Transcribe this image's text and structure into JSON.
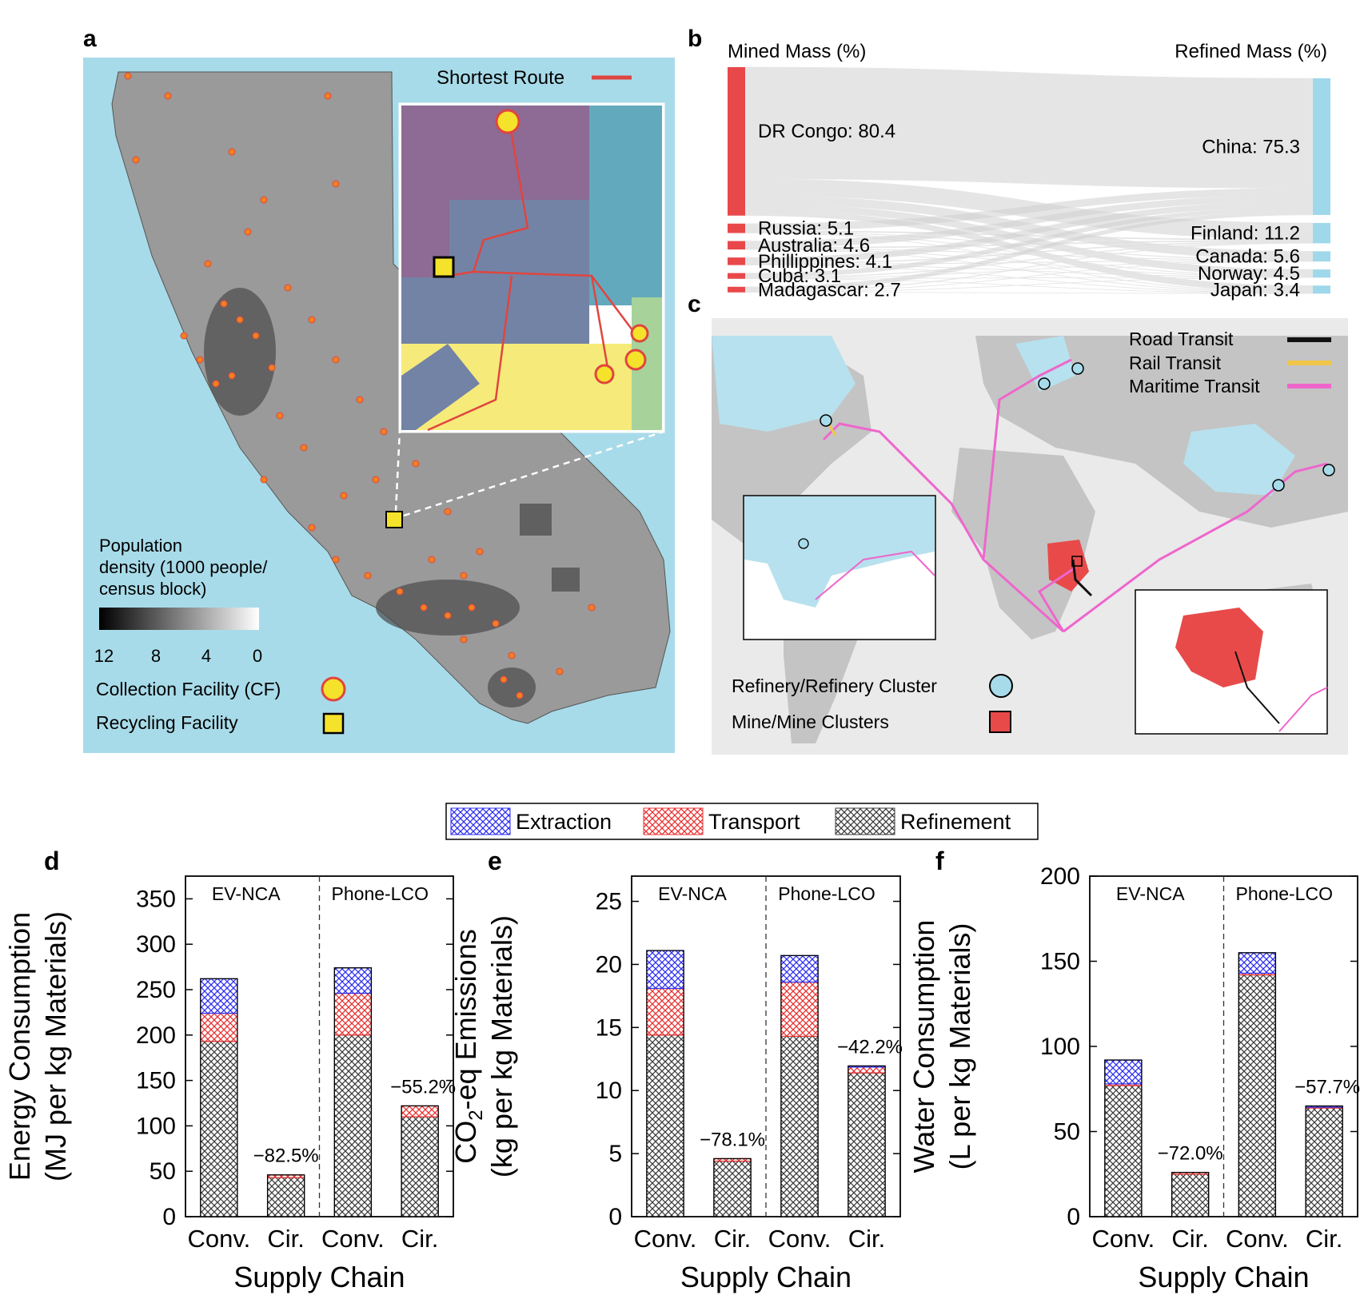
{
  "panel_labels": {
    "a": "a",
    "b": "b",
    "c": "c",
    "d": "d",
    "e": "e",
    "f": "f"
  },
  "colors": {
    "ocean": "#a8dbe9",
    "land": "#c6c6c6",
    "route": "#e0453f",
    "mined": "#e8484a",
    "refined": "#9ed8ea",
    "extraction": "#2e2ef0",
    "transport": "#e83030",
    "refinement": "#3c3c3c",
    "road": "#111111",
    "rail": "#f0c64a",
    "maritime": "#ee66cc",
    "facility_yellow": "#f5e22a"
  },
  "panel_a": {
    "shortest_route_label": "Shortest Route",
    "legend_title_line1": "Population",
    "legend_title_line2": "density (1000 people/",
    "legend_title_line3": "census block)",
    "colorbar_ticks": [
      "12",
      "8",
      "4",
      "0"
    ],
    "collection_label": "Collection Facility (CF)",
    "recycling_label": "Recycling Facility"
  },
  "panel_b": {
    "left_title": "Mined Mass (%)",
    "right_title": "Refined Mass (%)",
    "mined": [
      {
        "label": "DR Congo: 80.4",
        "value": 80.4
      },
      {
        "label": "Russia: 5.1",
        "value": 5.1
      },
      {
        "label": "Australia: 4.6",
        "value": 4.6
      },
      {
        "label": "Phillippines: 4.1",
        "value": 4.1
      },
      {
        "label": "Cuba: 3.1",
        "value": 3.1
      },
      {
        "label": "Madagascar: 2.7",
        "value": 2.7
      }
    ],
    "refined": [
      {
        "label": "China: 75.3",
        "value": 75.3
      },
      {
        "label": "Finland: 11.2",
        "value": 11.2
      },
      {
        "label": "Canada: 5.6",
        "value": 5.6
      },
      {
        "label": "Norway: 4.5",
        "value": 4.5
      },
      {
        "label": "Japan: 3.4",
        "value": 3.4
      }
    ]
  },
  "panel_c": {
    "road_label": "Road Transit",
    "rail_label": "Rail Transit",
    "maritime_label": "Maritime Transit",
    "refinery_label": "Refinery/Refinery Cluster",
    "mine_label": "Mine/Mine Clusters"
  },
  "legend": {
    "extraction": "Extraction",
    "transport": "Transport",
    "refinement": "Refinement"
  },
  "chart_data": [
    {
      "type": "bar",
      "stacked": true,
      "panel": "d",
      "ylabel_line1": "Energy Consumption",
      "ylabel_line2": "(MJ per kg Materials)",
      "xlabel": "Supply Chain",
      "ylim": [
        0,
        375
      ],
      "yticks": [
        0,
        50,
        100,
        150,
        200,
        250,
        300,
        350
      ],
      "categories": [
        "Conv.",
        "Cir.",
        "Conv.",
        "Cir."
      ],
      "groups": [
        "EV-NCA",
        "Phone-LCO"
      ],
      "series": [
        {
          "name": "Refinement",
          "values": [
            193,
            43,
            200,
            110
          ]
        },
        {
          "name": "Transport",
          "values": [
            31,
            3,
            46,
            12
          ]
        },
        {
          "name": "Extraction",
          "values": [
            38,
            0,
            28,
            0
          ]
        }
      ],
      "annotations": [
        "−82.5%",
        "−55.2%"
      ]
    },
    {
      "type": "bar",
      "stacked": true,
      "panel": "e",
      "ylabel_line1": "CO",
      "ylabel_sub": "2",
      "ylabel_rest": "-eq Emissions",
      "ylabel_line2": "(kg per kg Materials)",
      "xlabel": "Supply Chain",
      "ylim": [
        0,
        27
      ],
      "yticks": [
        0,
        5,
        10,
        15,
        20,
        25
      ],
      "categories": [
        "Conv.",
        "Cir.",
        "Conv.",
        "Cir."
      ],
      "groups": [
        "EV-NCA",
        "Phone-LCO"
      ],
      "series": [
        {
          "name": "Refinement",
          "values": [
            14.4,
            4.4,
            14.3,
            11.4
          ]
        },
        {
          "name": "Transport",
          "values": [
            3.7,
            0.2,
            4.3,
            0.5
          ]
        },
        {
          "name": "Extraction",
          "values": [
            3.0,
            0,
            2.1,
            0.05
          ]
        }
      ],
      "annotations": [
        "−78.1%",
        "−42.2%"
      ]
    },
    {
      "type": "bar",
      "stacked": true,
      "panel": "f",
      "ylabel_line1": "Water Consumption",
      "ylabel_line2": "(L per kg Materials)",
      "xlabel": "Supply Chain",
      "ylim": [
        0,
        200
      ],
      "yticks": [
        0,
        50,
        100,
        150,
        200
      ],
      "categories": [
        "Conv.",
        "Cir.",
        "Conv.",
        "Cir."
      ],
      "groups": [
        "EV-NCA",
        "Phone-LCO"
      ],
      "series": [
        {
          "name": "Refinement",
          "values": [
            77,
            25,
            142,
            64
          ]
        },
        {
          "name": "Transport",
          "values": [
            1,
            1,
            1,
            0.5
          ]
        },
        {
          "name": "Extraction",
          "values": [
            14,
            0,
            12,
            0.5
          ]
        }
      ],
      "annotations": [
        "−72.0%",
        "−57.7%"
      ]
    }
  ]
}
